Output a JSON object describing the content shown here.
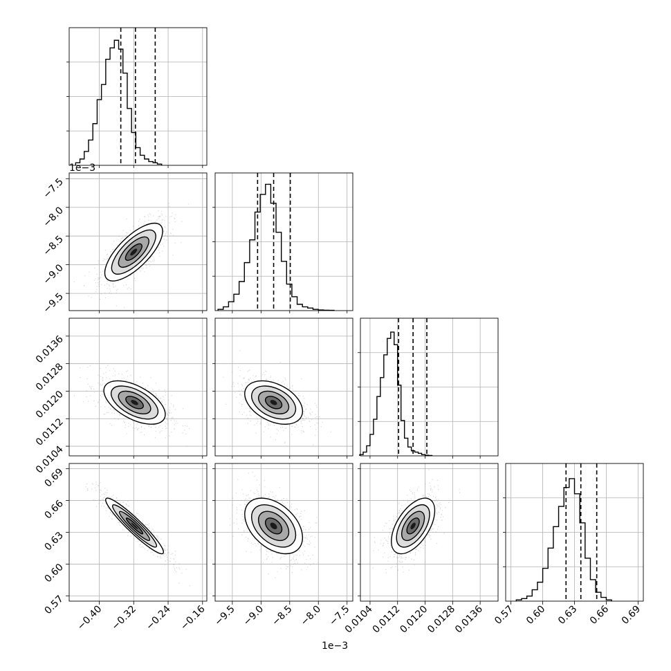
{
  "chart_data": {
    "type": "corner",
    "description_free": true,
    "grid": true,
    "parameters": [
      {
        "range": [
          -0.47,
          -0.15
        ],
        "ticks": [
          -0.4,
          -0.32,
          -0.24,
          -0.16
        ],
        "tick_labels": [
          "−0.40",
          "−0.32",
          "−0.24",
          "−0.16"
        ],
        "offset_label": "",
        "quantiles": [
          -0.35,
          -0.316,
          -0.27
        ],
        "hist": {
          "edges_start": -0.455,
          "bin_width": 0.01,
          "counts": [
            0.02,
            0.05,
            0.11,
            0.2,
            0.33,
            0.52,
            0.64,
            0.84,
            0.93,
            0.99,
            0.92,
            0.73,
            0.45,
            0.26,
            0.14,
            0.08,
            0.05,
            0.03,
            0.02,
            0.01
          ]
        },
        "hist_ylim": [
          0,
          1.09
        ]
      },
      {
        "range": [
          -9.8,
          -7.4
        ],
        "ticks": [
          -9.5,
          -9.0,
          -8.5,
          -8.0,
          -7.5
        ],
        "tick_labels": [
          "−9.5",
          "−9.0",
          "−8.5",
          "−8.0",
          "−7.5"
        ],
        "offset_label": "1e−3",
        "quantiles": [
          -9.06,
          -8.78,
          -8.49
        ],
        "hist": {
          "edges_start": -9.75,
          "bin_width": 0.092,
          "counts": [
            0.01,
            0.03,
            0.07,
            0.13,
            0.23,
            0.38,
            0.56,
            0.78,
            0.92,
            1.0,
            0.85,
            0.62,
            0.39,
            0.21,
            0.11,
            0.05,
            0.03,
            0.02,
            0.01,
            0.005,
            0.003,
            0.002
          ]
        },
        "hist_ylim": [
          0,
          1.09
        ]
      },
      {
        "range": [
          0.01012,
          0.01412
        ],
        "ticks": [
          0.0104,
          0.0112,
          0.012,
          0.0128,
          0.0136
        ],
        "tick_labels": [
          "0.0104",
          "0.0112",
          "0.0120",
          "0.0128",
          "0.0136"
        ],
        "offset_label": "",
        "quantiles": [
          0.01123,
          0.01165,
          0.01205
        ],
        "hist": {
          "edges_start": 0.0101,
          "bin_width": 0.0001,
          "counts": [
            0.01,
            0.03,
            0.08,
            0.17,
            0.29,
            0.47,
            0.62,
            0.8,
            0.93,
            0.98,
            0.88,
            0.56,
            0.28,
            0.14,
            0.07,
            0.04,
            0.03,
            0.02,
            0.01,
            0.005,
            0.003
          ]
        },
        "hist_ylim": [
          0,
          1.09
        ]
      },
      {
        "range": [
          0.565,
          0.695
        ],
        "ticks": [
          0.57,
          0.6,
          0.63,
          0.66,
          0.69
        ],
        "tick_labels": [
          "0.57",
          "0.60",
          "0.63",
          "0.66",
          "0.69"
        ],
        "offset_label": "",
        "quantiles": [
          0.622,
          0.636,
          0.651
        ],
        "hist": {
          "edges_start": 0.575,
          "bin_width": 0.005,
          "counts": [
            0.01,
            0.02,
            0.04,
            0.09,
            0.15,
            0.26,
            0.42,
            0.59,
            0.75,
            0.9,
            0.97,
            0.85,
            0.62,
            0.34,
            0.17,
            0.07,
            0.03,
            0.01
          ]
        },
        "hist_ylim": [
          0,
          1.09
        ]
      }
    ],
    "pairs": [
      {
        "x": 0,
        "y": 1,
        "mean": [
          -0.32,
          -8.78
        ],
        "sd": [
          0.032,
          0.24
        ],
        "rho": 0.72
      },
      {
        "x": 0,
        "y": 2,
        "mean": [
          -0.318,
          0.01167
        ],
        "sd": [
          0.034,
          0.0003
        ],
        "rho": -0.55
      },
      {
        "x": 1,
        "y": 2,
        "mean": [
          -8.78,
          0.01167
        ],
        "sd": [
          0.24,
          0.0003
        ],
        "rho": -0.4
      },
      {
        "x": 0,
        "y": 3,
        "mean": [
          -0.318,
          0.636
        ],
        "sd": [
          0.032,
          0.0125
        ],
        "rho": -0.94
      },
      {
        "x": 1,
        "y": 3,
        "mean": [
          -8.78,
          0.636
        ],
        "sd": [
          0.24,
          0.0125
        ],
        "rho": -0.42
      },
      {
        "x": 2,
        "y": 3,
        "mean": [
          0.01165,
          0.636
        ],
        "sd": [
          0.0003,
          0.0125
        ],
        "rho": 0.55
      }
    ]
  }
}
